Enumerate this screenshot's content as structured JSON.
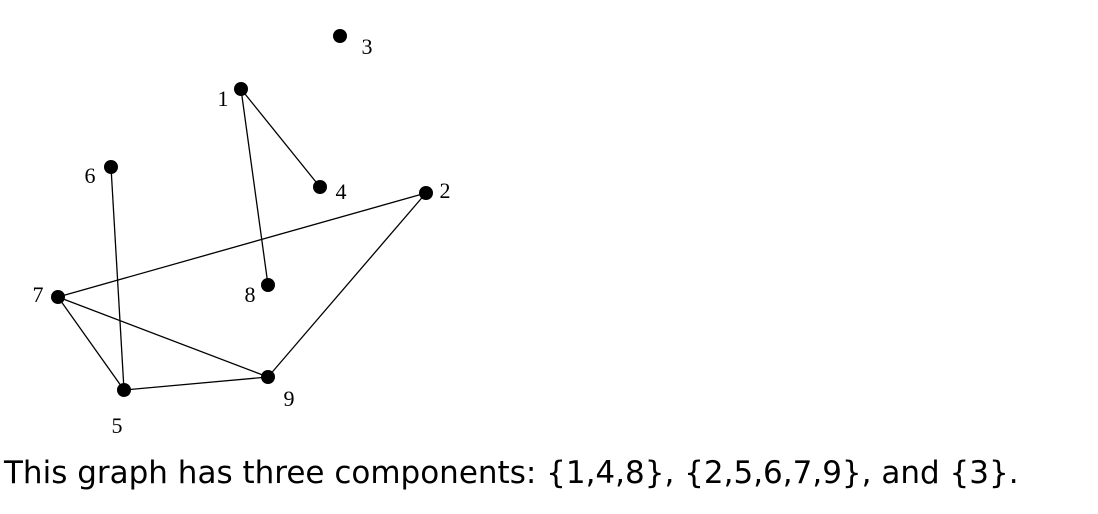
{
  "graph": {
    "nodes": [
      {
        "id": "1",
        "label": "1"
      },
      {
        "id": "2",
        "label": "2"
      },
      {
        "id": "3",
        "label": "3"
      },
      {
        "id": "4",
        "label": "4"
      },
      {
        "id": "5",
        "label": "5"
      },
      {
        "id": "6",
        "label": "6"
      },
      {
        "id": "7",
        "label": "7"
      },
      {
        "id": "8",
        "label": "8"
      },
      {
        "id": "9",
        "label": "9"
      }
    ],
    "edges": [
      [
        "1",
        "4"
      ],
      [
        "1",
        "8"
      ],
      [
        "6",
        "5"
      ],
      [
        "7",
        "2"
      ],
      [
        "7",
        "5"
      ],
      [
        "7",
        "9"
      ],
      [
        "5",
        "9"
      ],
      [
        "9",
        "2"
      ]
    ]
  },
  "caption": "This graph has three components: {1,4,8}, {2,5,6,7,9}, and {3}."
}
